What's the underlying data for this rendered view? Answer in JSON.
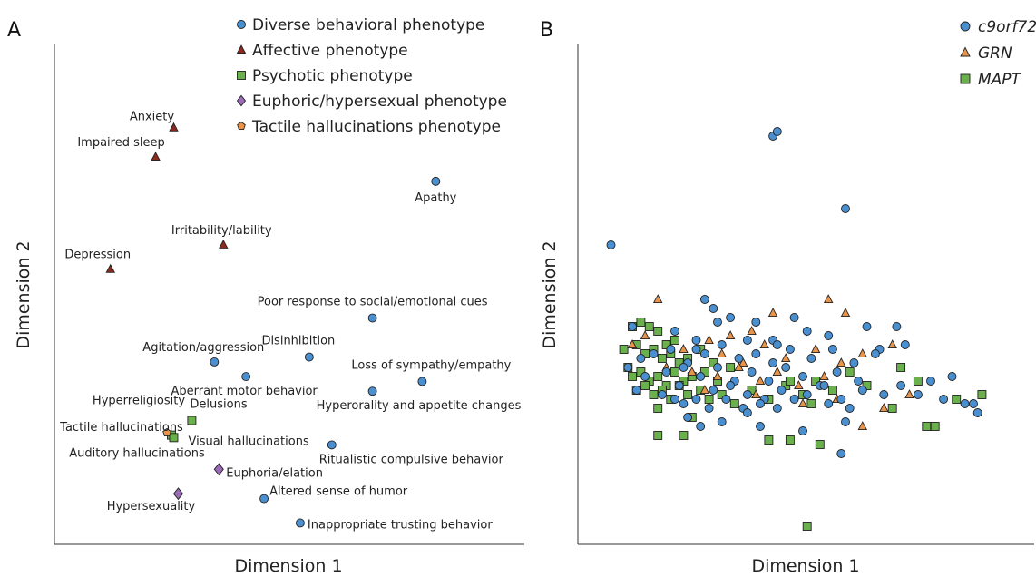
{
  "colors": {
    "behavioral": "#4a90d0",
    "affective": "#8b2a1e",
    "psychotic": "#6ab04c",
    "euphoric": "#9b6ab8",
    "tactile": "#e8944a",
    "c9orf72": "#4a90d0",
    "GRN": "#e8944a",
    "MAPT": "#6ab04c"
  },
  "chart_data": [
    {
      "type": "scatter",
      "panel": "A",
      "xlabel": "Dimension 1",
      "ylabel": "Dimension 2",
      "xlim": [
        0,
        10
      ],
      "ylim": [
        0,
        10
      ],
      "legend_position": "top-right",
      "series": [
        {
          "name": "Diverse behavioral phenotype",
          "marker": "circle",
          "color_key": "behavioral",
          "points": [
            {
              "x": 8.4,
              "y": 7.4,
              "label": "Apathy"
            },
            {
              "x": 7.0,
              "y": 4.6,
              "label": "Poor response to social/emotional cues"
            },
            {
              "x": 5.6,
              "y": 3.8,
              "label": "Disinhibition"
            },
            {
              "x": 3.5,
              "y": 3.7,
              "label": "Agitation/aggression"
            },
            {
              "x": 4.2,
              "y": 3.4,
              "label": "Aberrant motor behavior"
            },
            {
              "x": 8.1,
              "y": 3.3,
              "label": "Loss of sympathy/empathy"
            },
            {
              "x": 7.0,
              "y": 3.1,
              "label": "Hyperorality and appetite changes"
            },
            {
              "x": 6.1,
              "y": 2.0,
              "label": "Ritualistic compulsive behavior"
            },
            {
              "x": 4.6,
              "y": 0.9,
              "label": "Altered sense of humor"
            },
            {
              "x": 5.4,
              "y": 0.4,
              "label": "Inappropriate trusting behavior"
            }
          ]
        },
        {
          "name": "Affective phenotype",
          "marker": "triangle",
          "color_key": "affective",
          "points": [
            {
              "x": 2.6,
              "y": 8.5,
              "label": "Anxiety"
            },
            {
              "x": 2.2,
              "y": 7.9,
              "label": "Impaired sleep"
            },
            {
              "x": 3.7,
              "y": 6.1,
              "label": "Irritability/lability"
            },
            {
              "x": 1.2,
              "y": 5.6,
              "label": "Depression"
            }
          ]
        },
        {
          "name": "Psychotic phenotype",
          "marker": "square",
          "color_key": "psychotic",
          "points": [
            {
              "x": 2.55,
              "y": 2.2,
              "label": "Auditory hallucinations"
            },
            {
              "x": 2.6,
              "y": 2.15,
              "label": "Visual hallucinations"
            },
            {
              "x": 3.0,
              "y": 2.5,
              "label": "Delusions"
            }
          ]
        },
        {
          "name": "Euphoric/hypersexual phenotype",
          "marker": "diamond",
          "color_key": "euphoric",
          "points": [
            {
              "x": 3.6,
              "y": 1.5,
              "label": "Euphoria/elation"
            },
            {
              "x": 2.7,
              "y": 1.0,
              "label": "Hypersexuality"
            }
          ]
        },
        {
          "name": "Tactile hallucinations phenotype",
          "marker": "pentagon",
          "color_key": "tactile",
          "points": [
            {
              "x": 2.45,
              "y": 2.25,
              "label": "Tactile hallucinations"
            }
          ]
        }
      ],
      "extra_labels": [
        {
          "text": "Hyperreligiosity",
          "anchor_series": 2,
          "anchor_point": 0
        }
      ]
    },
    {
      "type": "scatter",
      "panel": "B",
      "xlabel": "Dimension 1",
      "ylabel": "Dimension 2",
      "xlim": [
        0,
        10
      ],
      "ylim": [
        0,
        10
      ],
      "legend_position": "top-right",
      "series": [
        {
          "name": "c9orf72",
          "marker": "circle",
          "color_key": "c9orf72",
          "x": [
            4.3,
            4.4,
            0.5,
            6.0,
            2.7,
            2.9,
            1.0,
            2.0,
            3.0,
            3.3,
            2.5,
            3.9,
            4.3,
            4.8,
            5.1,
            2.5,
            3.7,
            4.4,
            5.6,
            6.5,
            6.8,
            7.2,
            1.2,
            1.5,
            1.9,
            2.3,
            2.7,
            3.1,
            3.5,
            3.9,
            4.3,
            4.7,
            5.2,
            5.7,
            6.2,
            6.7,
            7.4,
            0.9,
            1.3,
            1.8,
            2.2,
            2.6,
            3.0,
            3.4,
            3.8,
            4.2,
            4.6,
            5.0,
            5.4,
            5.8,
            6.3,
            1.1,
            1.7,
            2.1,
            2.5,
            2.9,
            3.3,
            3.7,
            4.1,
            4.5,
            5.1,
            5.5,
            5.9,
            6.4,
            6.9,
            7.3,
            8.0,
            8.5,
            2.2,
            2.8,
            3.2,
            3.6,
            4.0,
            4.4,
            4.8,
            5.6,
            6.1,
            7.7,
            8.3,
            8.8,
            9.1,
            9.0,
            2.3,
            2.6,
            3.1,
            3.7,
            4.0,
            5.0,
            6.0,
            5.9,
            2.0
          ],
          "y": [
            9.0,
            9.1,
            6.6,
            7.4,
            5.4,
            5.2,
            4.8,
            4.7,
            4.9,
            5.0,
            4.5,
            4.9,
            4.5,
            5.0,
            4.7,
            4.3,
            4.5,
            4.4,
            4.6,
            4.8,
            4.3,
            4.8,
            4.1,
            4.2,
            4.3,
            4.0,
            4.2,
            4.4,
            4.1,
            4.2,
            4.0,
            4.3,
            4.1,
            4.3,
            4.0,
            4.2,
            4.4,
            3.9,
            3.7,
            3.8,
            3.9,
            3.7,
            3.9,
            3.6,
            3.8,
            3.6,
            3.9,
            3.7,
            3.5,
            3.8,
            3.6,
            3.4,
            3.3,
            3.5,
            3.2,
            3.4,
            3.5,
            3.3,
            3.2,
            3.4,
            3.3,
            3.5,
            3.2,
            3.4,
            3.3,
            3.5,
            3.6,
            3.7,
            3.1,
            3.0,
            3.2,
            3.0,
            3.1,
            3.0,
            3.2,
            3.1,
            3.0,
            3.3,
            3.2,
            3.1,
            2.9,
            3.1,
            2.8,
            2.6,
            2.7,
            2.9,
            2.6,
            2.5,
            2.7,
            2.0,
            3.2
          ]
        },
        {
          "name": "GRN",
          "marker": "triangle",
          "color_key": "GRN",
          "x": [
            1.6,
            4.3,
            5.6,
            3.3,
            3.8,
            6.0,
            1.0,
            1.3,
            2.2,
            2.8,
            3.1,
            3.6,
            4.1,
            4.6,
            5.3,
            5.9,
            6.4,
            7.1,
            1.8,
            2.4,
            3.0,
            3.5,
            4.0,
            4.4,
            4.9,
            5.5,
            2.7,
            3.9,
            5.0,
            5.8,
            6.9,
            7.5,
            6.4
          ],
          "y": [
            5.4,
            5.1,
            5.4,
            4.6,
            4.7,
            5.1,
            4.4,
            4.6,
            4.3,
            4.5,
            4.2,
            4.0,
            4.4,
            4.1,
            4.3,
            4.0,
            4.2,
            4.4,
            3.9,
            3.8,
            3.7,
            3.9,
            3.6,
            3.8,
            3.5,
            3.7,
            3.4,
            3.3,
            3.1,
            3.2,
            3.0,
            3.3,
            2.6
          ]
        },
        {
          "name": "MAPT",
          "marker": "square",
          "color_key": "MAPT",
          "x": [
            1.0,
            1.2,
            1.4,
            1.6,
            1.8,
            2.0,
            0.8,
            1.1,
            1.3,
            1.5,
            1.7,
            1.9,
            2.1,
            2.3,
            2.6,
            2.9,
            0.9,
            1.0,
            1.2,
            1.4,
            1.6,
            1.8,
            2.0,
            2.2,
            2.4,
            2.7,
            3.0,
            3.3,
            1.1,
            1.3,
            1.5,
            1.7,
            1.9,
            2.1,
            2.3,
            2.6,
            2.8,
            3.1,
            3.4,
            3.8,
            4.2,
            4.6,
            5.0,
            5.3,
            5.7,
            6.1,
            6.5,
            7.3,
            7.7,
            8.6,
            9.2,
            7.1,
            2.4,
            1.6,
            4.7,
            5.2,
            8.1,
            5.4,
            4.2,
            2.2
          ],
          "y": [
            4.8,
            4.9,
            4.8,
            4.7,
            4.4,
            4.5,
            4.3,
            4.4,
            4.2,
            4.3,
            4.1,
            4.2,
            4.0,
            4.1,
            4.3,
            4.0,
            3.9,
            3.7,
            3.8,
            3.6,
            3.7,
            3.5,
            3.8,
            3.6,
            3.7,
            3.8,
            3.6,
            3.9,
            3.4,
            3.5,
            3.3,
            3.4,
            3.2,
            3.5,
            3.3,
            3.4,
            3.2,
            3.3,
            3.1,
            3.4,
            3.2,
            3.5,
            3.3,
            3.6,
            3.4,
            3.8,
            3.5,
            3.9,
            3.6,
            3.2,
            3.3,
            3.0,
            2.8,
            3.0,
            3.6,
            3.1,
            2.6,
            2.2,
            2.3,
            2.4
          ]
        }
      ],
      "extra_points": [
        {
          "series": 2,
          "x": 5.1,
          "y": 0.4
        },
        {
          "series": 2,
          "x": 1.6,
          "y": 2.4
        },
        {
          "series": 2,
          "x": 4.7,
          "y": 2.3
        },
        {
          "series": 2,
          "x": 7.9,
          "y": 2.6
        }
      ]
    }
  ]
}
